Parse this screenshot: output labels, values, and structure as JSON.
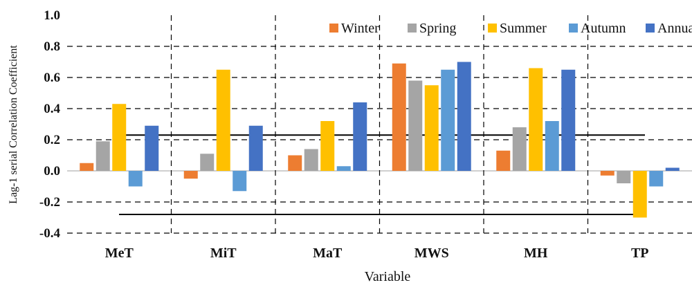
{
  "chart_data": {
    "type": "bar",
    "categories": [
      "MeT",
      "MiT",
      "MaT",
      "MWS",
      "MH",
      "TP"
    ],
    "series": [
      {
        "name": "Winter",
        "color": "#ED7D31",
        "values": [
          0.05,
          -0.05,
          0.1,
          0.69,
          0.13,
          -0.03
        ]
      },
      {
        "name": "Spring",
        "color": "#A5A5A5",
        "values": [
          0.19,
          0.11,
          0.14,
          0.58,
          0.28,
          -0.08
        ]
      },
      {
        "name": "Summer",
        "color": "#FFC000",
        "values": [
          0.43,
          0.65,
          0.32,
          0.55,
          0.66,
          -0.3
        ]
      },
      {
        "name": "Autumn",
        "color": "#5B9BD5",
        "values": [
          -0.1,
          -0.13,
          0.03,
          0.65,
          0.32,
          -0.1
        ]
      },
      {
        "name": "Annual",
        "color": "#4472C4",
        "values": [
          0.29,
          0.29,
          0.44,
          0.7,
          0.65,
          0.02
        ]
      }
    ],
    "xlabel": "Variable",
    "ylabel": "Lag-1 serial Correlation Coefficient",
    "ylim": [
      -0.4,
      1.0
    ],
    "y_ticks": [
      "-0.4",
      "-0.2",
      "0.0",
      "0.2",
      "0.4",
      "0.6",
      "0.8",
      "1.0"
    ],
    "significance_lines": [
      0.23,
      -0.28
    ],
    "grid": "horizontal dashed",
    "legend_position": "top-right"
  }
}
